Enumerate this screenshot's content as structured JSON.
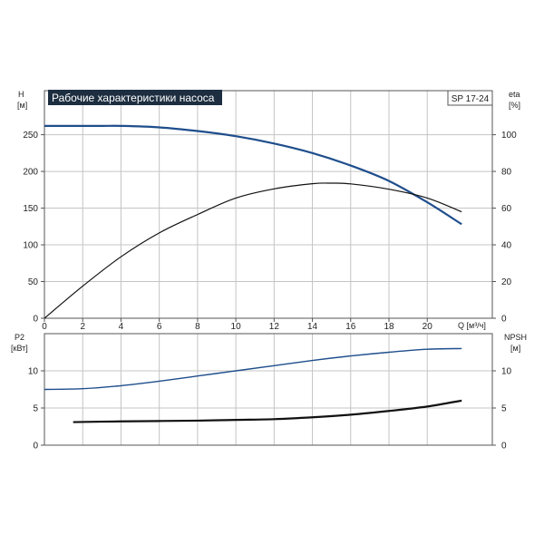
{
  "chart_data": [
    {
      "type": "line",
      "title": "Рабочие характеристики насоса",
      "model": "SP 17-24",
      "xlabel": "Q [м³/ч]",
      "ylabel_left": "H",
      "ylabel_left_unit": "[м]",
      "ylabel_right": "eta",
      "ylabel_right_unit": "[%]",
      "xlim": [
        0,
        23.4
      ],
      "ylim_left": [
        0,
        310
      ],
      "ylim_right": [
        0,
        124
      ],
      "x_ticks": [
        "0",
        "2",
        "4",
        "6",
        "8",
        "10",
        "12",
        "14",
        "16",
        "18",
        "20"
      ],
      "y_left_ticks": [
        "0",
        "50",
        "100",
        "150",
        "200",
        "250"
      ],
      "y_right_ticks": [
        "0",
        "20",
        "40",
        "60",
        "80",
        "100"
      ],
      "grid": true,
      "series": [
        {
          "axis": "left",
          "color": "#1f4e8c",
          "x": [
            0,
            1.5,
            3,
            4,
            6,
            8,
            10,
            12,
            14,
            16,
            18,
            20,
            21.8
          ],
          "y": [
            262,
            262,
            262,
            262,
            260,
            255,
            248,
            238,
            225,
            208,
            187,
            158,
            128
          ]
        },
        {
          "axis": "right",
          "color": "#111111",
          "x": [
            0,
            2,
            4,
            6,
            8,
            10,
            12,
            14,
            15,
            16,
            18,
            20,
            21.8
          ],
          "y": [
            0,
            17.5,
            33.5,
            46.5,
            56.5,
            65.5,
            70.5,
            73.3,
            73.6,
            73.2,
            70.3,
            65.5,
            58
          ]
        }
      ]
    },
    {
      "type": "line",
      "ylabel_left": "P2",
      "ylabel_left_unit": "[кВт]",
      "ylabel_right": "NPSH",
      "ylabel_right_unit": "[м]",
      "xlim": [
        0,
        23.4
      ],
      "ylim_left": [
        0,
        15
      ],
      "ylim_right": [
        0,
        15
      ],
      "y_left_ticks": [
        "0",
        "5",
        "10"
      ],
      "y_right_ticks": [
        "0",
        "5",
        "10"
      ],
      "grid": true,
      "series": [
        {
          "axis": "left",
          "color": "#1f4e8c",
          "x": [
            0,
            2,
            4,
            6,
            8,
            10,
            12,
            14,
            16,
            18,
            20,
            21.8
          ],
          "y": [
            7.5,
            7.6,
            8.0,
            8.6,
            9.3,
            10.0,
            10.7,
            11.4,
            12.0,
            12.5,
            12.9,
            13.0
          ]
        },
        {
          "axis": "right",
          "color": "#111111",
          "x": [
            1.5,
            4,
            6,
            8,
            10,
            12,
            14,
            16,
            18,
            20,
            21.8
          ],
          "y": [
            3.1,
            3.2,
            3.25,
            3.3,
            3.4,
            3.5,
            3.75,
            4.1,
            4.6,
            5.2,
            6.0
          ]
        }
      ]
    }
  ]
}
